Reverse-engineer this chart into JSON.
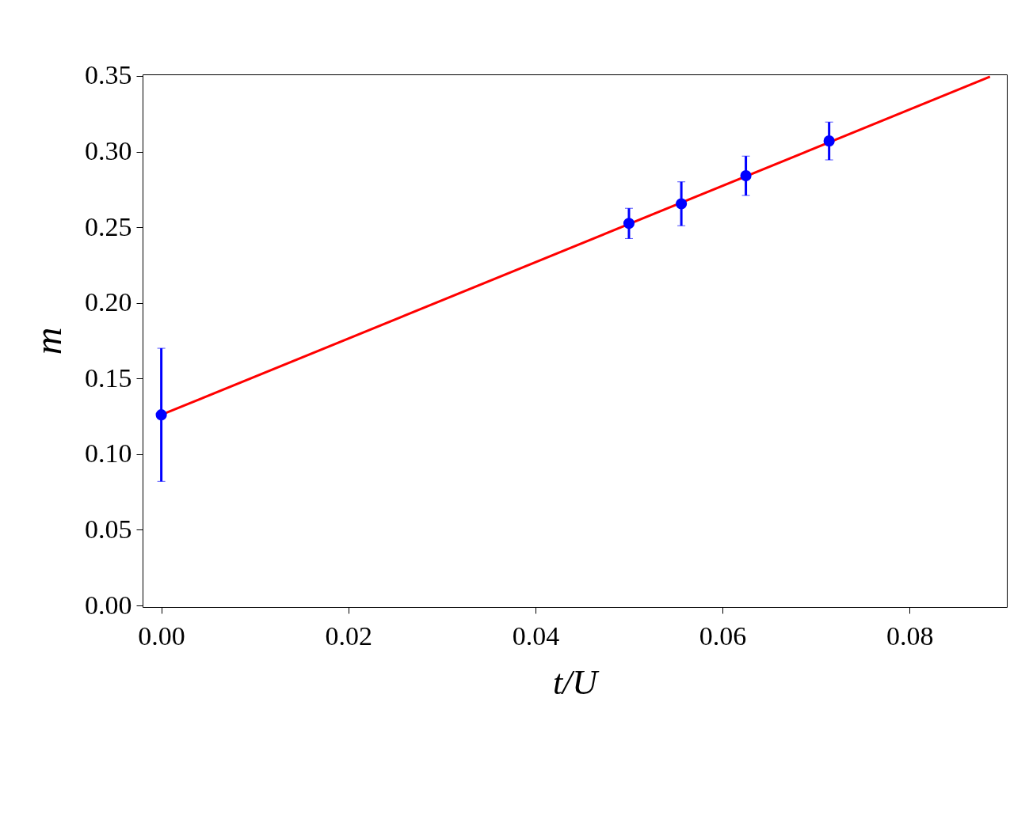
{
  "chart_data": {
    "type": "scatter",
    "xlabel": "t/U",
    "ylabel": "m",
    "xlim": [
      -0.002,
      0.0904
    ],
    "ylim": [
      -0.001,
      0.351
    ],
    "xticks": [
      {
        "value": 0,
        "label": "0.00"
      },
      {
        "value": 0.02,
        "label": "0.02"
      },
      {
        "value": 0.04,
        "label": "0.04"
      },
      {
        "value": 0.06,
        "label": "0.06"
      },
      {
        "value": 0.08,
        "label": "0.08"
      }
    ],
    "yticks": [
      {
        "value": 0,
        "label": "0.00"
      },
      {
        "value": 0.05,
        "label": "0.05"
      },
      {
        "value": 0.1,
        "label": "0.10"
      },
      {
        "value": 0.15,
        "label": "0.15"
      },
      {
        "value": 0.2,
        "label": "0.20"
      },
      {
        "value": 0.25,
        "label": "0.25"
      },
      {
        "value": 0.3,
        "label": "0.30"
      },
      {
        "value": 0.35,
        "label": "0.35"
      }
    ],
    "series": [
      {
        "type": "line",
        "color": "#ff0000",
        "x": [
          0,
          0.0886
        ],
        "values": [
          0.126,
          0.3495
        ]
      },
      {
        "color": "#0000ff",
        "marker": "circle",
        "x": [
          0,
          0.05,
          0.0556,
          0.0625,
          0.0714
        ],
        "values": [
          0.126,
          0.2525,
          0.2655,
          0.284,
          0.307
        ],
        "errors": [
          0.044,
          0.01,
          0.0145,
          0.013,
          0.0125
        ]
      }
    ]
  }
}
